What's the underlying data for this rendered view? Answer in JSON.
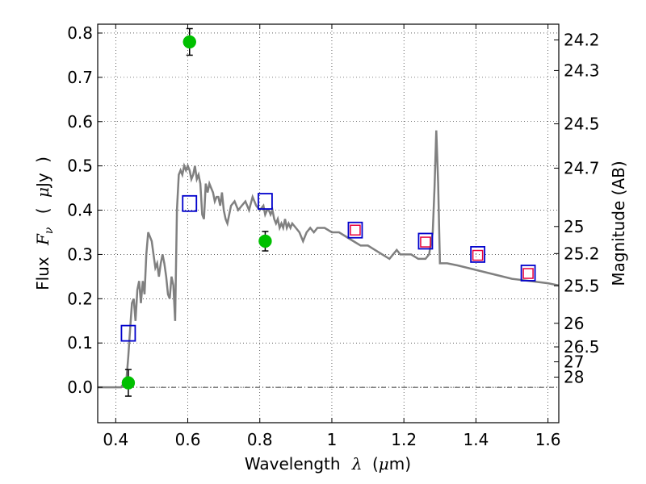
{
  "chart_data": {
    "type": "scatter",
    "xlabel": {
      "prefix": "Wavelength",
      "symbol": "λ",
      "unit_open": "(",
      "unit_mu": "μ",
      "unit_rest": "m)"
    },
    "ylabel": {
      "prefix": "Flux",
      "symbol": "F",
      "sub": "ν",
      "unit_open": "(",
      "unit_mu": "μ",
      "unit_rest": "Jy",
      "unit_close": ")"
    },
    "ylabel_right": "Magnitude (AB)",
    "xlim": [
      0.35,
      1.63
    ],
    "ylim": [
      -0.08,
      0.82
    ],
    "grid": true,
    "xticks": [
      {
        "value": 0.4,
        "label": "0.4"
      },
      {
        "value": 0.6,
        "label": "0.6"
      },
      {
        "value": 0.8,
        "label": "0.8"
      },
      {
        "value": 1.0,
        "label": "1"
      },
      {
        "value": 1.2,
        "label": "1.2"
      },
      {
        "value": 1.4,
        "label": "1.4"
      },
      {
        "value": 1.6,
        "label": "1.6"
      }
    ],
    "yticks": [
      {
        "value": 0.0,
        "label": "0.0"
      },
      {
        "value": 0.1,
        "label": "0.1"
      },
      {
        "value": 0.2,
        "label": "0.2"
      },
      {
        "value": 0.3,
        "label": "0.3"
      },
      {
        "value": 0.4,
        "label": "0.4"
      },
      {
        "value": 0.5,
        "label": "0.5"
      },
      {
        "value": 0.6,
        "label": "0.6"
      },
      {
        "value": 0.7,
        "label": "0.7"
      },
      {
        "value": 0.8,
        "label": "0.8"
      }
    ],
    "magnitude_ticks": [
      {
        "label": "24.2",
        "flux": 0.7844
      },
      {
        "label": "24.3",
        "flux": 0.7154
      },
      {
        "label": "24.5",
        "flux": 0.595
      },
      {
        "label": "24.7",
        "flux": 0.4949
      },
      {
        "label": "25",
        "flux": 0.3631
      },
      {
        "label": "25.2",
        "flux": 0.302
      },
      {
        "label": "25.5",
        "flux": 0.2291
      },
      {
        "label": "26",
        "flux": 0.1445
      },
      {
        "label": "26.5",
        "flux": 0.0912
      },
      {
        "label": "27",
        "flux": 0.0575
      },
      {
        "label": "28",
        "flux": 0.0229
      }
    ],
    "colors": {
      "model": "#808080",
      "observed": "#00c000",
      "model_photometry": "#0000cc",
      "red_squares": "#e8003a",
      "errorbar": "#000000"
    },
    "model_spectrum": {
      "x": [
        0.35,
        0.415,
        0.43,
        0.435,
        0.44,
        0.445,
        0.45,
        0.455,
        0.46,
        0.465,
        0.47,
        0.475,
        0.48,
        0.485,
        0.49,
        0.5,
        0.505,
        0.51,
        0.515,
        0.52,
        0.525,
        0.53,
        0.535,
        0.54,
        0.545,
        0.55,
        0.555,
        0.56,
        0.565,
        0.57,
        0.575,
        0.58,
        0.585,
        0.59,
        0.595,
        0.6,
        0.605,
        0.61,
        0.615,
        0.62,
        0.625,
        0.63,
        0.635,
        0.64,
        0.645,
        0.65,
        0.655,
        0.66,
        0.665,
        0.67,
        0.675,
        0.68,
        0.685,
        0.69,
        0.695,
        0.7,
        0.705,
        0.71,
        0.72,
        0.73,
        0.74,
        0.75,
        0.76,
        0.77,
        0.78,
        0.79,
        0.8,
        0.81,
        0.815,
        0.82,
        0.825,
        0.83,
        0.835,
        0.84,
        0.845,
        0.85,
        0.855,
        0.86,
        0.865,
        0.87,
        0.875,
        0.88,
        0.885,
        0.89,
        0.9,
        0.91,
        0.92,
        0.93,
        0.94,
        0.95,
        0.96,
        0.97,
        0.98,
        1.0,
        1.02,
        1.04,
        1.06,
        1.08,
        1.1,
        1.12,
        1.14,
        1.16,
        1.18,
        1.19,
        1.2,
        1.22,
        1.24,
        1.26,
        1.27,
        1.28,
        1.285,
        1.29,
        1.295,
        1.3,
        1.32,
        1.35,
        1.4,
        1.45,
        1.5,
        1.55,
        1.6,
        1.63
      ],
      "y": [
        0.0,
        0.0,
        0.02,
        0.07,
        0.13,
        0.19,
        0.2,
        0.15,
        0.22,
        0.24,
        0.19,
        0.24,
        0.21,
        0.3,
        0.35,
        0.33,
        0.3,
        0.27,
        0.28,
        0.25,
        0.28,
        0.3,
        0.28,
        0.25,
        0.21,
        0.2,
        0.25,
        0.23,
        0.15,
        0.4,
        0.48,
        0.49,
        0.48,
        0.5,
        0.49,
        0.5,
        0.49,
        0.47,
        0.48,
        0.5,
        0.47,
        0.48,
        0.46,
        0.39,
        0.38,
        0.46,
        0.44,
        0.46,
        0.45,
        0.44,
        0.42,
        0.43,
        0.43,
        0.41,
        0.44,
        0.4,
        0.38,
        0.37,
        0.41,
        0.42,
        0.4,
        0.41,
        0.42,
        0.4,
        0.43,
        0.41,
        0.4,
        0.41,
        0.39,
        0.4,
        0.4,
        0.39,
        0.4,
        0.38,
        0.37,
        0.38,
        0.36,
        0.37,
        0.36,
        0.38,
        0.36,
        0.37,
        0.36,
        0.37,
        0.36,
        0.35,
        0.33,
        0.35,
        0.36,
        0.35,
        0.36,
        0.36,
        0.36,
        0.35,
        0.35,
        0.34,
        0.33,
        0.32,
        0.32,
        0.31,
        0.3,
        0.29,
        0.31,
        0.3,
        0.3,
        0.3,
        0.29,
        0.29,
        0.3,
        0.35,
        0.45,
        0.58,
        0.46,
        0.28,
        0.28,
        0.275,
        0.265,
        0.255,
        0.245,
        0.24,
        0.235,
        0.23
      ]
    },
    "observed": [
      {
        "x": 0.435,
        "y": 0.01,
        "yerr": 0.03
      },
      {
        "x": 0.605,
        "y": 0.78,
        "yerr": 0.03
      },
      {
        "x": 0.815,
        "y": 0.33,
        "yerr": 0.022
      }
    ],
    "model_photometry": [
      {
        "x": 0.435,
        "y": 0.122
      },
      {
        "x": 0.605,
        "y": 0.415
      },
      {
        "x": 0.815,
        "y": 0.42
      },
      {
        "x": 1.065,
        "y": 0.355
      },
      {
        "x": 1.26,
        "y": 0.33
      },
      {
        "x": 1.405,
        "y": 0.3
      },
      {
        "x": 1.545,
        "y": 0.258
      }
    ],
    "red_squares": [
      {
        "x": 1.065,
        "y": 0.355
      },
      {
        "x": 1.26,
        "y": 0.328
      },
      {
        "x": 1.405,
        "y": 0.298
      },
      {
        "x": 1.545,
        "y": 0.257
      }
    ]
  }
}
